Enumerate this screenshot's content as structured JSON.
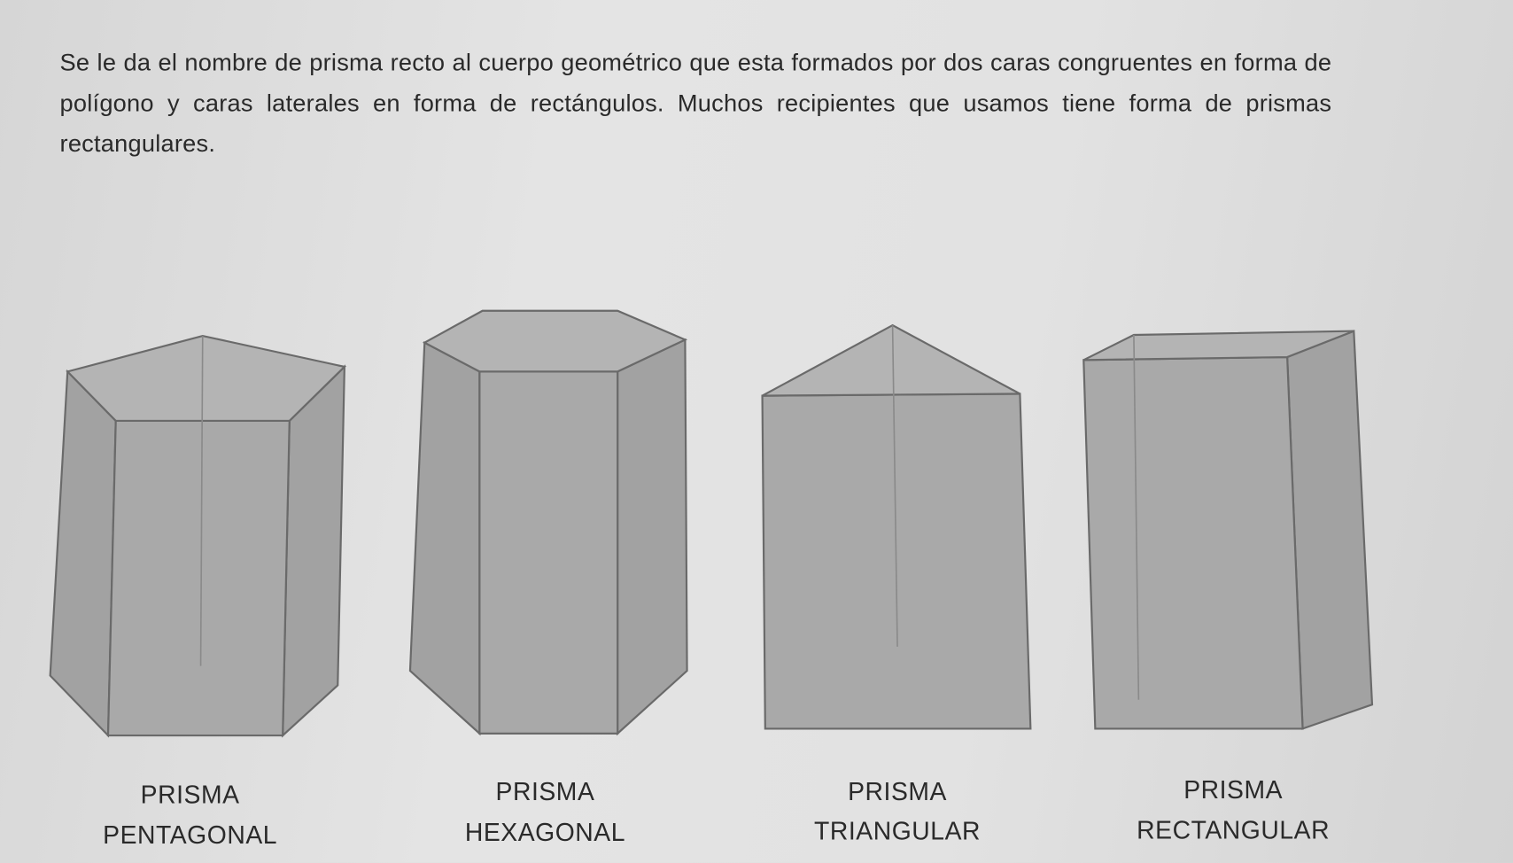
{
  "paragraph": "Se le da el nombre de prisma recto al cuerpo geométrico que esta formados por dos caras congruentes en forma de polígono y caras laterales en forma de rectángulos. Muchos recipientes que usamos tiene forma de prismas rectangulares.",
  "figures": [
    {
      "line1": "PRISMA",
      "line2": "PENTAGONAL"
    },
    {
      "line1": "PRISMA",
      "line2": "HEXAGONAL"
    },
    {
      "line1": "PRISMA",
      "line2": "TRIANGULAR"
    },
    {
      "line1": "PRISMA",
      "line2": "RECTANGULAR"
    }
  ],
  "colors": {
    "paper": "#e2e2e2",
    "prism_fill": "#a9a9a9",
    "text": "#2a2a2a"
  }
}
